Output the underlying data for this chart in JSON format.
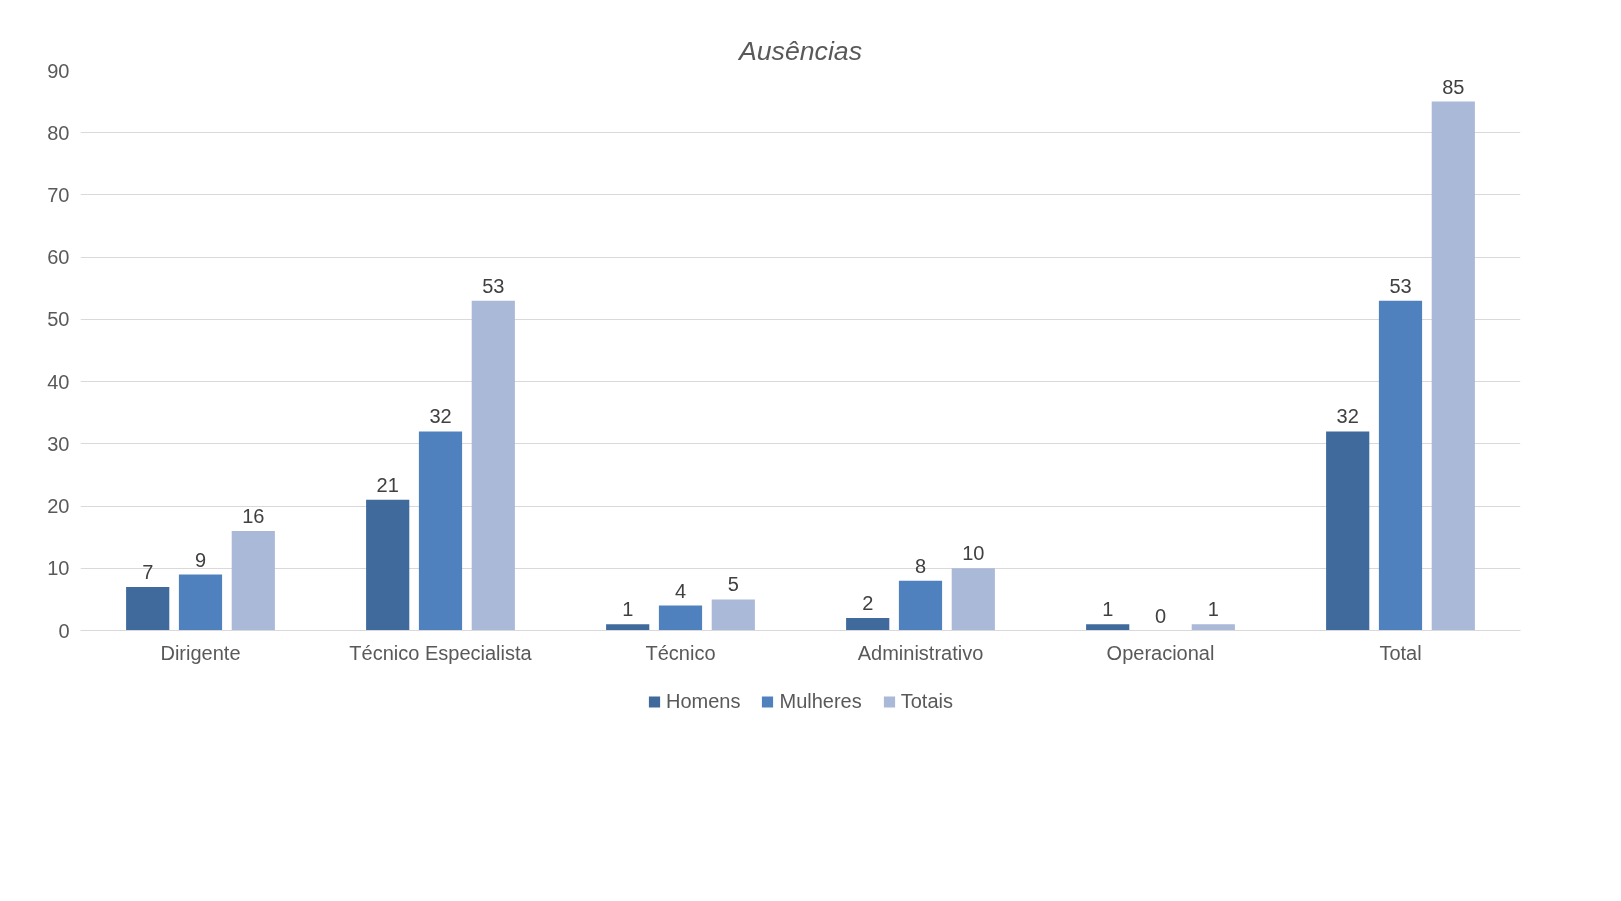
{
  "chart_data": {
    "type": "bar",
    "title": "Ausências",
    "categories": [
      "Dirigente",
      "Técnico Especialista",
      "Técnico",
      "Administrativo",
      "Operacional",
      "Total"
    ],
    "series": [
      {
        "name": "Homens",
        "color": "#3f6a9b",
        "values": [
          7,
          21,
          1,
          2,
          1,
          32
        ]
      },
      {
        "name": "Mulheres",
        "color": "#4e81bd",
        "values": [
          9,
          32,
          4,
          8,
          0,
          53
        ]
      },
      {
        "name": "Totais",
        "color": "#aab9d8",
        "values": [
          16,
          53,
          5,
          10,
          1,
          85
        ]
      }
    ],
    "ylim": [
      0,
      90
    ],
    "yticks": [
      0,
      10,
      20,
      30,
      40,
      50,
      60,
      70,
      80,
      90
    ],
    "grid": "y",
    "legend": "bottom",
    "data_labels": true
  }
}
